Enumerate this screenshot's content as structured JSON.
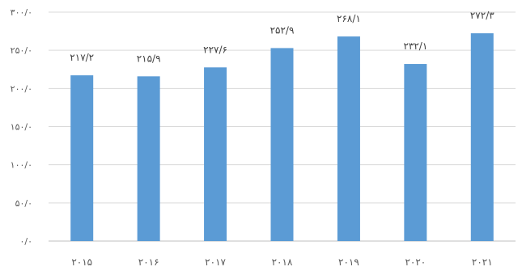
{
  "chart_data": {
    "type": "bar",
    "categories": [
      "۲۰۱۵",
      "۲۰۱۶",
      "۲۰۱۷",
      "۲۰۱۸",
      "۲۰۱۹",
      "۲۰۲۰",
      "۲۰۲۱"
    ],
    "values": [
      217.2,
      215.9,
      227.6,
      252.9,
      268.1,
      232.1,
      272.3
    ],
    "value_labels": [
      "۲۱۷/۲",
      "۲۱۵/۹",
      "۲۲۷/۶",
      "۲۵۲/۹",
      "۲۶۸/۱",
      "۲۳۲/۱",
      "۲۷۲/۳"
    ],
    "ylim": [
      0,
      300
    ],
    "yticks": [
      0,
      50,
      100,
      150,
      200,
      250,
      300
    ],
    "ytick_labels": [
      "۰/۰",
      "۵۰/۰",
      "۱۰۰/۰",
      "۱۵۰/۰",
      "۲۰۰/۰",
      "۲۵۰/۰",
      "۳۰۰/۰"
    ],
    "bar_color": "#5b9bd5",
    "grid": true,
    "legend": "none"
  }
}
